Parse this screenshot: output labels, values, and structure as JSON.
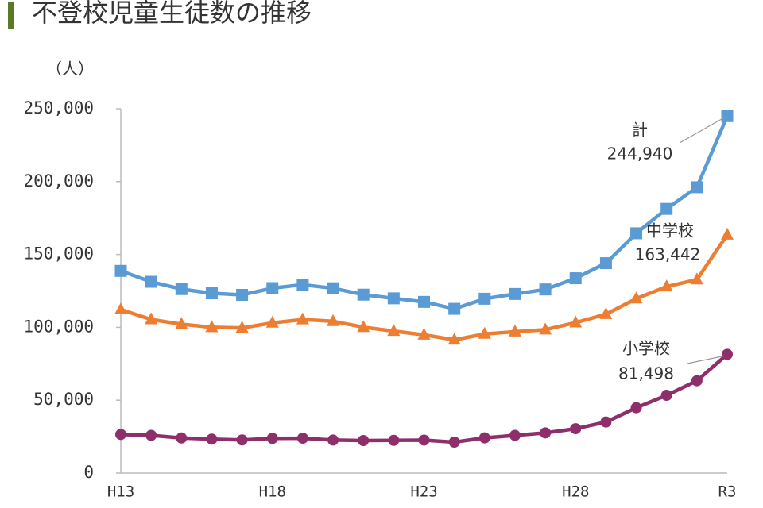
{
  "chart_data": {
    "type": "line",
    "title": "不登校児童生徒数の推移",
    "y_label": "（人）",
    "categories": [
      "H13",
      null,
      null,
      null,
      null,
      "H18",
      null,
      null,
      null,
      null,
      "H23",
      null,
      null,
      null,
      null,
      "H28",
      null,
      null,
      null,
      null,
      "R3"
    ],
    "ylim": [
      0,
      250000
    ],
    "yticks": [
      0,
      {
        "value": 50000,
        "label": "50,000"
      },
      {
        "value": 100000,
        "label": "100,000"
      },
      {
        "value": 150000,
        "label": "150,000"
      },
      {
        "value": 200000,
        "label": "200,000"
      },
      {
        "value": 250000,
        "label": "250,000"
      }
    ],
    "series": [
      {
        "name": "計",
        "color": "#5b9bd5",
        "marker": "square",
        "values": [
          138722,
          131252,
          126226,
          123358,
          122287,
          126894,
          129255,
          126805,
          122432,
          119891,
          117458,
          112689,
          119617,
          122897,
          125991,
          133683,
          144031,
          164528,
          181272,
          196127,
          244940
        ],
        "value_labels": [
          null,
          null,
          null,
          null,
          null,
          null,
          null,
          null,
          null,
          null,
          null,
          null,
          null,
          null,
          null,
          null,
          null,
          null,
          null,
          null,
          "244,940"
        ]
      },
      {
        "name": "中学校",
        "color": "#ed7d31",
        "marker": "triangle",
        "values": [
          112211,
          105383,
          102149,
          100040,
          99578,
          103069,
          105328,
          104153,
          100105,
          97428,
          94836,
          91446,
          95442,
          97033,
          98408,
          103235,
          108999,
          119687,
          127922,
          132777,
          163442
        ],
        "value_labels": [
          null,
          null,
          null,
          null,
          null,
          null,
          null,
          null,
          null,
          null,
          null,
          null,
          null,
          null,
          null,
          null,
          null,
          null,
          null,
          null,
          "163,442"
        ]
      },
      {
        "name": "小学校",
        "color": "#8e2f6b",
        "marker": "circle",
        "values": [
          26511,
          25869,
          24077,
          23318,
          22709,
          23825,
          23927,
          22652,
          22327,
          22463,
          22622,
          21243,
          24175,
          25864,
          27583,
          30448,
          35032,
          44841,
          53350,
          63350,
          81498
        ],
        "value_labels": [
          null,
          null,
          null,
          null,
          null,
          null,
          null,
          null,
          null,
          null,
          null,
          null,
          null,
          null,
          null,
          null,
          null,
          null,
          null,
          null,
          "81,498"
        ]
      }
    ]
  }
}
